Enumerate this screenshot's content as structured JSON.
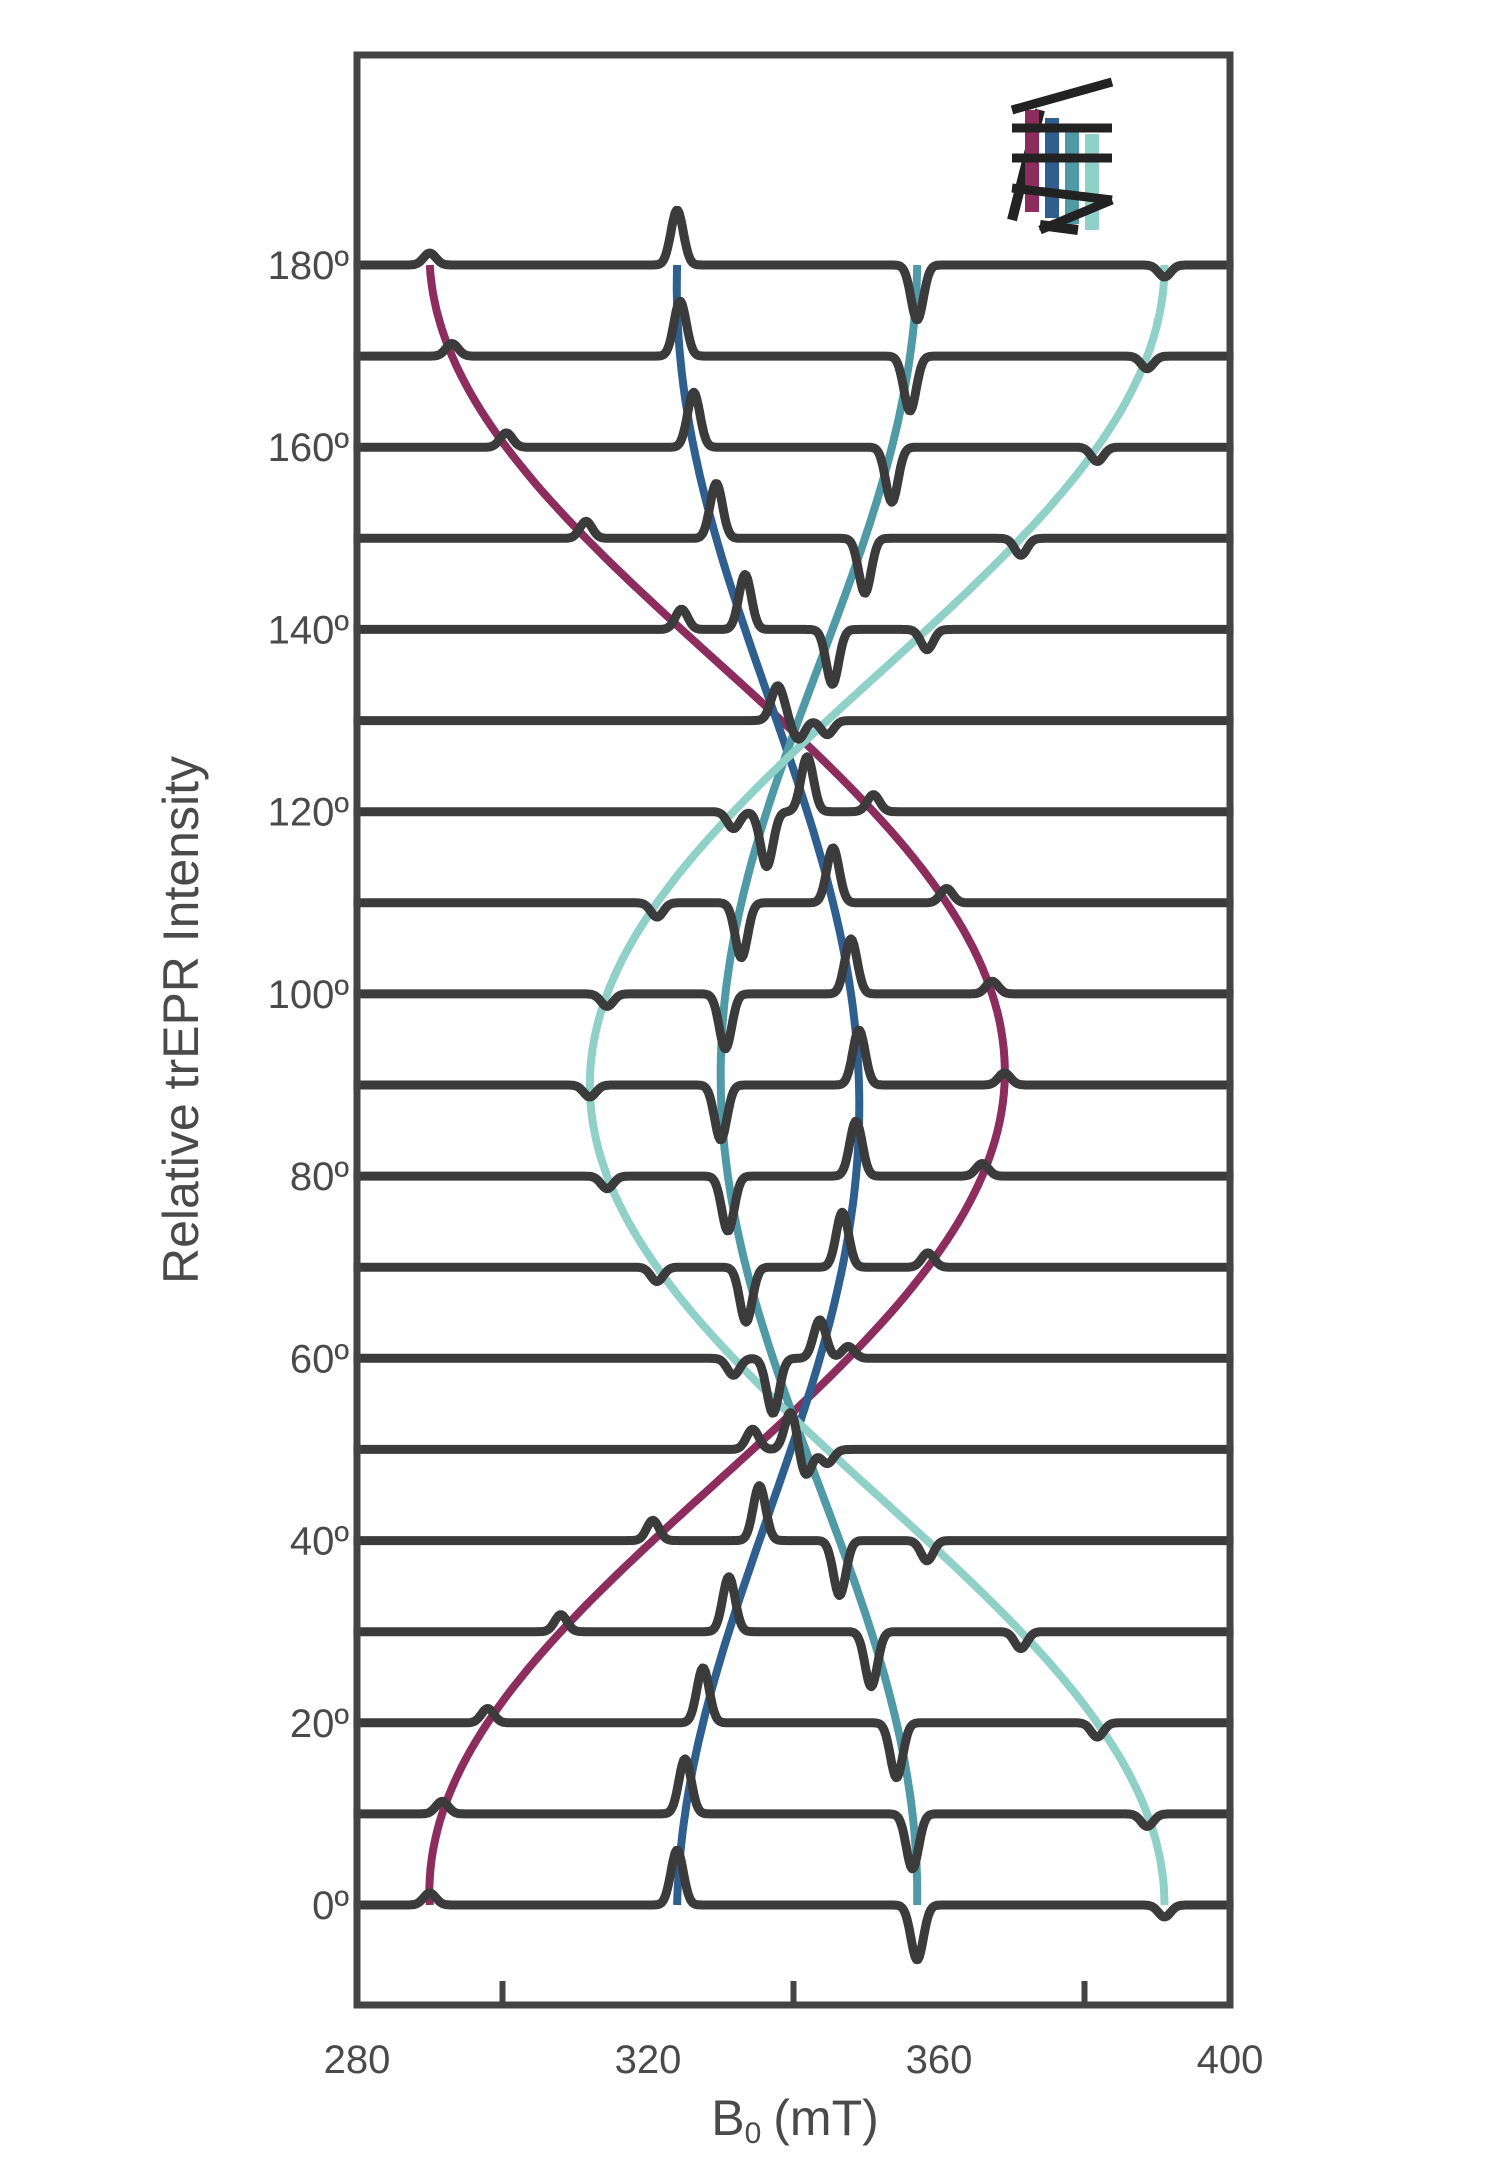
{
  "chart_data": {
    "type": "line",
    "subtype": "stacked-offset-spectra",
    "xlabel_main": "B",
    "xlabel_sub": "0",
    "xlabel_unit": "(mT)",
    "ylabel": "Relative trEPR Intensity",
    "xlim": [
      280,
      400
    ],
    "x_ticks": [
      280,
      320,
      360,
      400
    ],
    "x_minor_ticks": [
      300,
      340,
      380
    ],
    "x_tick_labels": [
      "280",
      "320",
      "360",
      "400"
    ],
    "y_tick_labels": [
      "180º",
      "160º",
      "140º",
      "120º",
      "100º",
      "80º",
      "60º",
      "40º",
      "20º",
      "0º"
    ],
    "angle_range_deg": [
      0,
      180
    ],
    "angle_step_deg": 10,
    "grid": false,
    "legend": "none",
    "spectrum_color": "#3b3b3b",
    "series": [
      {
        "name": "",
        "color": "#8c2d5e",
        "peak_sign": "absorption",
        "field_mT": {
          "0": 290,
          "30": 307,
          "60": 340,
          "90": 369,
          "120": 344,
          "150": 306,
          "180": 290
        }
      },
      {
        "name": "",
        "color": "#2f5f8f",
        "peak_sign": "absorption",
        "field_mT": {
          "0": 324,
          "30": 330,
          "60": 345,
          "90": 349,
          "120": 343,
          "150": 328,
          "180": 324
        }
      },
      {
        "name": "",
        "color": "#4f9aa6",
        "peak_sign": "emission",
        "field_mT": {
          "0": 357,
          "30": 352,
          "60": 340,
          "90": 330,
          "120": 339,
          "150": 353,
          "180": 357
        }
      },
      {
        "name": "",
        "color": "#8fd0c7",
        "peak_sign": "emission",
        "field_mT": {
          "0": 391,
          "30": 370,
          "60": 339,
          "90": 312,
          "120": 339,
          "150": 370,
          "180": 391
        }
      }
    ]
  }
}
